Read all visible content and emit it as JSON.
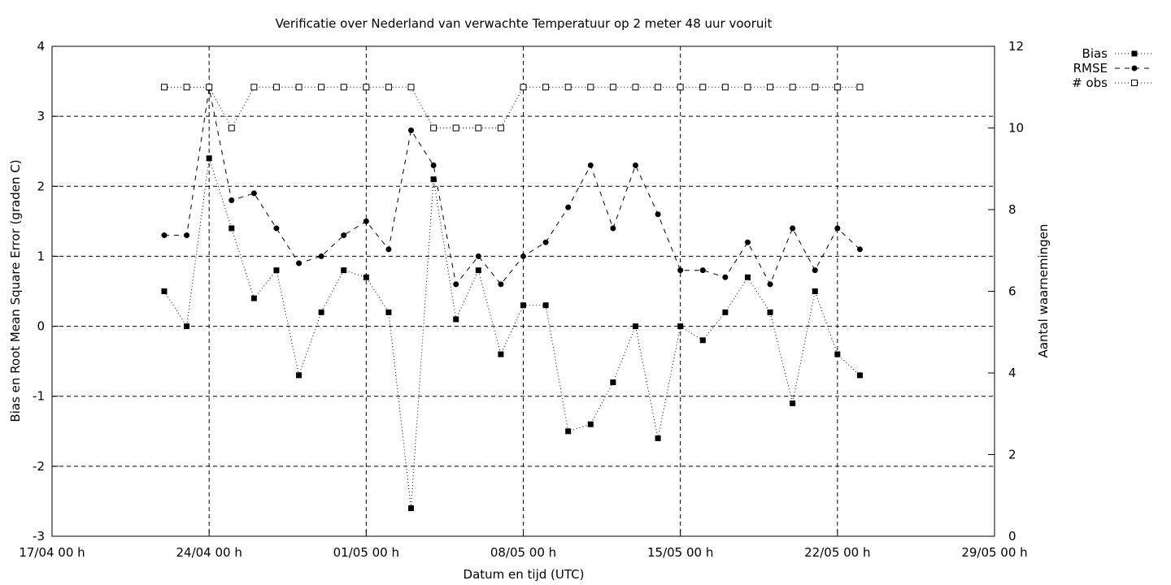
{
  "chart_data": {
    "type": "line",
    "title": "Verificatie over Nederland van verwachte Temperatuur op 2 meter 48 uur vooruit",
    "xlabel": "Datum en tijd (UTC)",
    "ylabel": "Bias en Root Mean Square Error (graden C)",
    "y2label": "Aantal waarnemingen",
    "xlim": [
      "17/04 00 h",
      "29/05 00 h"
    ],
    "ylim": [
      -3,
      4
    ],
    "y2lim": [
      0,
      12
    ],
    "grid": true,
    "legend_position": "top-right outside",
    "x_tick_labels": [
      "17/04 00 h",
      "24/04 00 h",
      "01/05 00 h",
      "08/05 00 h",
      "15/05 00 h",
      "22/05 00 h",
      "29/05 00 h"
    ],
    "y_tick_labels": [
      "-3",
      "-2",
      "-1",
      "0",
      "1",
      "2",
      "3",
      "4"
    ],
    "y2_tick_labels": [
      "0",
      "2",
      "4",
      "6",
      "8",
      "10",
      "12"
    ],
    "x": [
      "22/04",
      "23/04",
      "24/04",
      "25/04",
      "26/04",
      "27/04",
      "28/04",
      "29/04",
      "30/04",
      "01/05",
      "02/05",
      "03/05",
      "04/05",
      "05/05",
      "06/05",
      "07/05",
      "08/05",
      "09/05",
      "10/05",
      "11/05",
      "12/05",
      "13/05",
      "14/05",
      "15/05",
      "16/05",
      "17/05",
      "18/05",
      "19/05",
      "20/05",
      "21/05",
      "22/05",
      "23/05"
    ],
    "series": [
      {
        "name": "Bias",
        "axis": "y1",
        "marker": "filled-square",
        "line": "dotted",
        "values": [
          0.5,
          0.0,
          2.4,
          1.4,
          0.4,
          0.8,
          -0.7,
          0.2,
          0.8,
          0.7,
          0.2,
          -2.6,
          2.1,
          0.1,
          0.8,
          -0.4,
          0.3,
          0.3,
          -1.5,
          -1.4,
          -0.8,
          0.0,
          -1.6,
          0.0,
          -0.2,
          0.2,
          0.7,
          0.2,
          -1.1,
          0.5,
          -0.4,
          -0.7
        ]
      },
      {
        "name": "RMSE",
        "axis": "y1",
        "marker": "filled-circle",
        "line": "dashed",
        "values": [
          1.3,
          1.3,
          3.4,
          1.8,
          1.9,
          1.4,
          0.9,
          1.0,
          1.3,
          1.5,
          1.1,
          2.8,
          2.3,
          0.6,
          1.0,
          0.6,
          1.0,
          1.2,
          1.7,
          2.3,
          1.4,
          2.3,
          1.6,
          0.8,
          0.8,
          0.7,
          1.2,
          0.6,
          1.4,
          0.8,
          1.4,
          1.1
        ]
      },
      {
        "name": "# obs",
        "axis": "y2",
        "marker": "open-square",
        "line": "dotted",
        "values": [
          11,
          11,
          11,
          10,
          11,
          11,
          11,
          11,
          11,
          11,
          11,
          11,
          10,
          10,
          10,
          10,
          11,
          11,
          11,
          11,
          11,
          11,
          11,
          11,
          11,
          11,
          11,
          11,
          11,
          11,
          11,
          11
        ]
      }
    ]
  }
}
